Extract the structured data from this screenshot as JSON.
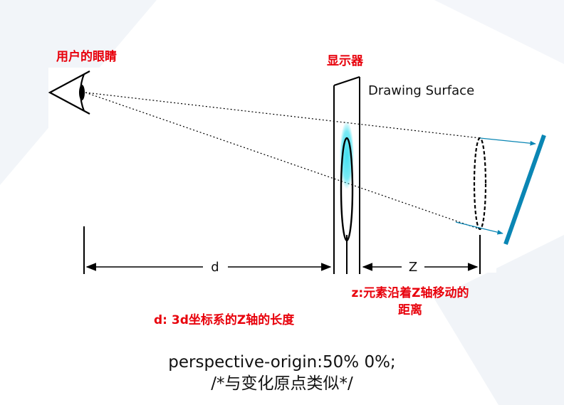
{
  "labels": {
    "eye": "用户的眼睛",
    "display": "显示器",
    "drawing_surface": "Drawing Surface",
    "d_axis": "d",
    "z_axis": "Z",
    "z_desc_line1": "z:元素沿着Z轴移动的",
    "z_desc_line2": "距离",
    "d_desc": "d: 3d坐标系的Z轴的长度"
  },
  "caption": {
    "line1": "perspective-origin:50% 0%;",
    "line2": "/*与变化原点类似*/"
  },
  "colors": {
    "label_red": "#e8000b",
    "accent_blue": "#0a86b4",
    "glow_cyan": "#40e0f0",
    "background_tint": "#eef2f7"
  },
  "icons": {
    "eye": "eye-icon"
  }
}
